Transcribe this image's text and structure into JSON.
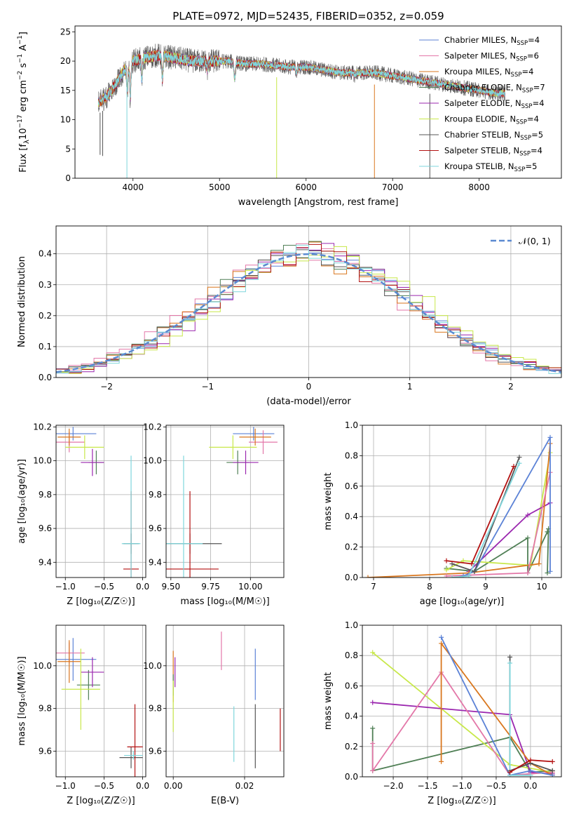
{
  "figure_title": "PLATE=0972, MJD=52435, FIBERID=0352, z=0.059",
  "models": [
    {
      "name": "Chabrier MILES, N",
      "sub": "SSP",
      "tail": "=4",
      "color": "#5b82d6"
    },
    {
      "name": "Salpeter MILES, N",
      "sub": "SSP",
      "tail": "=6",
      "color": "#e377a8"
    },
    {
      "name": "Kroupa MILES, N",
      "sub": "SSP",
      "tail": "=4",
      "color": "#d9771f"
    },
    {
      "name": "Chabrier ELODIE, N",
      "sub": "SSP",
      "tail": "=7",
      "color": "#4f7f55"
    },
    {
      "name": "Salpeter ELODIE, N",
      "sub": "SSP",
      "tail": "=4",
      "color": "#9b27af"
    },
    {
      "name": "Kroupa ELODIE, N",
      "sub": "SSP",
      "tail": "=4",
      "color": "#c8e84a"
    },
    {
      "name": "Chabrier STELIB, N",
      "sub": "SSP",
      "tail": "=5",
      "color": "#555555"
    },
    {
      "name": "Salpeter STELIB, N",
      "sub": "SSP",
      "tail": "=4",
      "color": "#b31212"
    },
    {
      "name": "Kroupa STELIB, N",
      "sub": "SSP",
      "tail": "=5",
      "color": "#7fd6dc"
    }
  ],
  "chart_data": [
    {
      "id": "spectrum",
      "type": "line",
      "xlabel": "wavelength [Angstrom, rest frame]",
      "ylabel_parts": [
        "Flux [f",
        "λ",
        "10",
        "−17",
        " erg cm",
        "−2",
        " s",
        "−1",
        " A",
        "−1",
        "]"
      ],
      "xlim": [
        3330,
        8950
      ],
      "ylim": [
        0,
        26
      ],
      "xticks": [
        4000,
        5000,
        6000,
        7000,
        8000
      ],
      "yticks": [
        0,
        5,
        10,
        15,
        20,
        25
      ],
      "grid": false,
      "legend": "upper-right",
      "series_note_x_range": [
        3600,
        8300
      ],
      "anchors": [
        [
          3600,
          13
        ],
        [
          3700,
          14
        ],
        [
          3800,
          16
        ],
        [
          3900,
          18.5
        ],
        [
          4000,
          20
        ],
        [
          4100,
          20.5
        ],
        [
          4300,
          21
        ],
        [
          4500,
          20.5
        ],
        [
          4700,
          20
        ],
        [
          4900,
          20
        ],
        [
          5100,
          20
        ],
        [
          5300,
          19.5
        ],
        [
          5500,
          19.5
        ],
        [
          5800,
          19
        ],
        [
          6000,
          19
        ],
        [
          6200,
          18.5
        ],
        [
          6400,
          18
        ],
        [
          6600,
          18
        ],
        [
          6800,
          18
        ],
        [
          7000,
          17.5
        ],
        [
          7200,
          17
        ],
        [
          7400,
          16.5
        ],
        [
          7600,
          16
        ],
        [
          7800,
          15.5
        ],
        [
          8000,
          15
        ],
        [
          8200,
          14.5
        ],
        [
          8300,
          14.5
        ]
      ],
      "absorption_lines": [
        [
          3934,
          15
        ],
        [
          3969,
          14
        ],
        [
          4102,
          17
        ],
        [
          4340,
          17
        ],
        [
          4861,
          18.5
        ],
        [
          5175,
          17
        ],
        [
          5890,
          18
        ],
        [
          6563,
          17.5
        ]
      ],
      "spikes": [
        [
          3620,
          4
        ],
        [
          3650,
          3.8
        ],
        [
          3930,
          0
        ],
        [
          5660,
          0
        ],
        [
          6790,
          0
        ],
        [
          7430,
          0
        ]
      ]
    },
    {
      "id": "residual_hist",
      "type": "bar",
      "xlabel": "(data-model)/error",
      "ylabel": "Normed distribution",
      "xlim": [
        -2.5,
        2.5
      ],
      "ylim": [
        0,
        0.49
      ],
      "xticks": [
        -2,
        -1,
        0,
        1,
        2
      ],
      "yticks": [
        0.0,
        0.1,
        0.2,
        0.3,
        0.4
      ],
      "grid": true,
      "legend": "upper-right",
      "reference_label": "𝒩(0, 1)",
      "reference_color": "#5b8ad1",
      "bin_edges_range": [
        -2.5,
        2.5
      ],
      "n_bins": 40
    },
    {
      "id": "age_vs_Z",
      "type": "scatter",
      "xlabel": "Z [log₁₀(Z/Z☉)]",
      "ylabel": "age  [log₁₀(age/yr)]",
      "xlim": [
        -1.12,
        0.04
      ],
      "ylim": [
        9.31,
        10.21
      ],
      "xticks": [
        -1.0,
        -0.5,
        0.0
      ],
      "yticks": [
        9.4,
        9.6,
        9.8,
        10.0,
        10.2
      ],
      "grid": true,
      "points": [
        {
          "model": 0,
          "x": -0.9,
          "xerr": 0.3,
          "y": 10.16,
          "yerr": 0.04
        },
        {
          "model": 1,
          "x": -0.95,
          "xerr": 0.2,
          "y": 10.11,
          "yerr": 0.06
        },
        {
          "model": 2,
          "x": -0.95,
          "xerr": 0.15,
          "y": 10.14,
          "yerr": 0.05
        },
        {
          "model": 3,
          "x": -0.6,
          "xerr": 0.1,
          "y": 9.99,
          "yerr": 0.07
        },
        {
          "model": 4,
          "x": -0.65,
          "xerr": 0.15,
          "y": 9.99,
          "yerr": 0.08
        },
        {
          "model": 5,
          "x": -0.75,
          "xerr": 0.25,
          "y": 10.08,
          "yerr": 0.07
        },
        {
          "model": 6,
          "x": -0.15,
          "xerr": 0.1,
          "y": 9.51,
          "yerr": 0.06
        },
        {
          "model": 7,
          "x": -0.15,
          "xerr": 0.1,
          "y": 9.36,
          "yerr": 0.46
        },
        {
          "model": 8,
          "x": -0.15,
          "xerr": 0.12,
          "y": 9.51,
          "yerr": 0.52
        }
      ]
    },
    {
      "id": "age_vs_mass",
      "type": "scatter",
      "xlabel": "mass [log₁₀(M/M☉)]",
      "ylabel": "",
      "xlim": [
        9.47,
        10.21
      ],
      "ylim": [
        9.31,
        10.21
      ],
      "xticks": [
        9.5,
        9.75,
        10.0
      ],
      "yticks": [
        9.4,
        9.6,
        9.8,
        10.0,
        10.2
      ],
      "grid": true,
      "points": [
        {
          "model": 0,
          "x": 10.02,
          "xerr": 0.13,
          "y": 10.16,
          "yerr": 0.04
        },
        {
          "model": 1,
          "x": 10.08,
          "xerr": 0.09,
          "y": 10.11,
          "yerr": 0.07
        },
        {
          "model": 2,
          "x": 10.03,
          "xerr": 0.1,
          "y": 10.14,
          "yerr": 0.05
        },
        {
          "model": 3,
          "x": 9.92,
          "xerr": 0.07,
          "y": 9.99,
          "yerr": 0.07
        },
        {
          "model": 4,
          "x": 9.97,
          "xerr": 0.08,
          "y": 9.99,
          "yerr": 0.07
        },
        {
          "model": 5,
          "x": 9.89,
          "xerr": 0.15,
          "y": 10.08,
          "yerr": 0.07
        },
        {
          "model": 6,
          "x": 9.62,
          "xerr": 0.2,
          "y": 9.51,
          "yerr": 0.06
        },
        {
          "model": 7,
          "x": 9.62,
          "xerr": 0.18,
          "y": 9.36,
          "yerr": 0.46
        },
        {
          "model": 8,
          "x": 9.58,
          "xerr": 0.12,
          "y": 9.51,
          "yerr": 0.52
        }
      ]
    },
    {
      "id": "mass_weight_vs_age",
      "type": "line",
      "xlabel": "age  [log₁₀(age/yr)]",
      "ylabel": "mass weight",
      "xlim": [
        6.8,
        10.35
      ],
      "ylim": [
        0,
        1.0
      ],
      "xticks": [
        7,
        8,
        9,
        10
      ],
      "yticks": [
        0.0,
        0.2,
        0.4,
        0.6,
        0.8,
        1.0
      ],
      "grid": true,
      "series": [
        {
          "model": 3,
          "points": [
            [
              8.3,
              0.06
            ],
            [
              8.8,
              0.04
            ],
            [
              9.75,
              0.26
            ],
            [
              9.75,
              0.03
            ],
            [
              10.1,
              0.3
            ],
            [
              10.12,
              0.32
            ],
            [
              10.1,
              0.03
            ]
          ]
        },
        {
          "model": 5,
          "points": [
            [
              8.3,
              0.05
            ],
            [
              8.6,
              0.11
            ],
            [
              9.8,
              0.08
            ],
            [
              10.15,
              0.82
            ]
          ]
        },
        {
          "model": 4,
          "points": [
            [
              8.7,
              0.04
            ],
            [
              9.75,
              0.41
            ],
            [
              10.15,
              0.49
            ]
          ]
        },
        {
          "model": 2,
          "points": [
            [
              6.9,
              0.0
            ],
            [
              8.7,
              0.03
            ],
            [
              9.95,
              0.09
            ],
            [
              10.15,
              0.88
            ]
          ]
        },
        {
          "model": 1,
          "points": [
            [
              8.3,
              0.01
            ],
            [
              9.75,
              0.03
            ],
            [
              10.15,
              0.69
            ]
          ]
        },
        {
          "model": 0,
          "points": [
            [
              8.6,
              0.01
            ],
            [
              8.8,
              0.04
            ],
            [
              10.15,
              0.92
            ],
            [
              10.15,
              0.04
            ]
          ]
        },
        {
          "model": 6,
          "points": [
            [
              8.4,
              0.09
            ],
            [
              8.8,
              0.04
            ],
            [
              9.6,
              0.79
            ]
          ]
        },
        {
          "model": 8,
          "points": [
            [
              8.4,
              0.0
            ],
            [
              8.7,
              0.01
            ],
            [
              9.6,
              0.75
            ]
          ]
        },
        {
          "model": 7,
          "points": [
            [
              8.3,
              0.11
            ],
            [
              8.75,
              0.09
            ],
            [
              9.5,
              0.73
            ]
          ]
        }
      ]
    },
    {
      "id": "mass_vs_Z",
      "type": "scatter",
      "xlabel": "Z [log₁₀(Z/Z☉)]",
      "ylabel": "mass [log₁₀(M/M☉)]",
      "xlim": [
        -1.12,
        0.04
      ],
      "ylim": [
        9.48,
        10.19
      ],
      "xticks": [
        -1.0,
        -0.5,
        0.0
      ],
      "yticks": [
        9.6,
        9.8,
        10.0
      ],
      "grid": true,
      "points": [
        {
          "model": 0,
          "x": -0.9,
          "xerr": 0.3,
          "y": 10.03,
          "yerr": 0.1
        },
        {
          "model": 1,
          "x": -0.95,
          "xerr": 0.2,
          "y": 10.06,
          "yerr": 0.05
        },
        {
          "model": 2,
          "x": -0.95,
          "xerr": 0.15,
          "y": 10.02,
          "yerr": 0.1
        },
        {
          "model": 3,
          "x": -0.7,
          "xerr": 0.15,
          "y": 9.91,
          "yerr": 0.07
        },
        {
          "model": 4,
          "x": -0.65,
          "xerr": 0.15,
          "y": 9.97,
          "yerr": 0.07
        },
        {
          "model": 5,
          "x": -0.8,
          "xerr": 0.25,
          "y": 9.89,
          "yerr": 0.19
        },
        {
          "model": 6,
          "x": -0.15,
          "xerr": 0.15,
          "y": 9.57,
          "yerr": 0.05
        },
        {
          "model": 7,
          "x": -0.1,
          "xerr": 0.1,
          "y": 9.62,
          "yerr": 0.2
        },
        {
          "model": 8,
          "x": -0.12,
          "xerr": 0.12,
          "y": 9.58,
          "yerr": 0.02
        }
      ]
    },
    {
      "id": "mass_vs_ebv",
      "type": "scatter",
      "xlabel": "E(B-V)",
      "ylabel": "",
      "xlim": [
        -0.002,
        0.031
      ],
      "ylim": [
        9.48,
        10.19
      ],
      "xticks": [
        0.0,
        0.02
      ],
      "yticks": [
        9.6,
        9.8,
        10.0
      ],
      "grid": true,
      "points": [
        {
          "model": 0,
          "x": 0.023,
          "y": 9.96,
          "yerr": 0.12
        },
        {
          "model": 1,
          "x": 0.0135,
          "y": 10.07,
          "yerr": 0.09
        },
        {
          "model": 2,
          "x": 0.0,
          "y": 9.95,
          "yerr": 0.12
        },
        {
          "model": 3,
          "x": 0.0,
          "y": 9.91,
          "yerr": 0.05
        },
        {
          "model": 4,
          "x": 0.0005,
          "y": 9.97,
          "yerr": 0.07
        },
        {
          "model": 5,
          "x": 0.0,
          "y": 9.81,
          "yerr": 0.12
        },
        {
          "model": 6,
          "x": 0.023,
          "y": 9.67,
          "yerr": 0.15
        },
        {
          "model": 7,
          "x": 0.03,
          "y": 9.7,
          "yerr": 0.1
        },
        {
          "model": 8,
          "x": 0.017,
          "y": 9.68,
          "yerr": 0.13
        }
      ]
    },
    {
      "id": "mass_weight_vs_Z",
      "type": "line",
      "xlabel": "Z [log₁₀(Z/Z☉)]",
      "ylabel": "mass weight",
      "xlim": [
        -2.45,
        0.45
      ],
      "ylim": [
        0,
        1.0
      ],
      "xticks": [
        -2.0,
        -1.5,
        -1.0,
        -0.5,
        0.0
      ],
      "yticks": [
        0.0,
        0.2,
        0.4,
        0.6,
        0.8,
        1.0
      ],
      "grid": true,
      "series": [
        {
          "model": 3,
          "points": [
            [
              -2.3,
              0.32
            ],
            [
              -2.3,
              0.04
            ],
            [
              -0.3,
              0.26
            ],
            [
              0.0,
              0.03
            ],
            [
              0.32,
              0.04
            ]
          ]
        },
        {
          "model": 5,
          "points": [
            [
              -2.3,
              0.82
            ],
            [
              -0.3,
              0.08
            ],
            [
              0.32,
              0.03
            ]
          ]
        },
        {
          "model": 4,
          "points": [
            [
              -2.3,
              0.49
            ],
            [
              -0.3,
              0.41
            ],
            [
              0.0,
              0.03
            ],
            [
              0.32,
              0.02
            ]
          ]
        },
        {
          "model": 1,
          "points": [
            [
              -2.3,
              0.22
            ],
            [
              -2.3,
              0.04
            ],
            [
              -1.3,
              0.69
            ],
            [
              -0.3,
              0.01
            ],
            [
              0.32,
              0.03
            ]
          ]
        },
        {
          "model": 2,
          "points": [
            [
              -1.3,
              0.1
            ],
            [
              -1.3,
              0.88
            ],
            [
              0.0,
              0.09
            ],
            [
              0.32,
              0.01
            ]
          ]
        },
        {
          "model": 0,
          "points": [
            [
              -1.3,
              0.92
            ],
            [
              -0.3,
              0.01
            ],
            [
              0.0,
              0.04
            ],
            [
              0.32,
              0.01
            ]
          ]
        },
        {
          "model": 6,
          "points": [
            [
              -0.3,
              0.79
            ],
            [
              -0.3,
              0.04
            ],
            [
              0.0,
              0.09
            ],
            [
              0.32,
              0.04
            ]
          ]
        },
        {
          "model": 8,
          "points": [
            [
              -0.3,
              0.75
            ],
            [
              -0.3,
              0.01
            ],
            [
              0.0,
              0.01
            ]
          ]
        },
        {
          "model": 7,
          "points": [
            [
              -0.3,
              0.03
            ],
            [
              0.0,
              0.11
            ],
            [
              0.32,
              0.1
            ]
          ]
        }
      ]
    }
  ]
}
